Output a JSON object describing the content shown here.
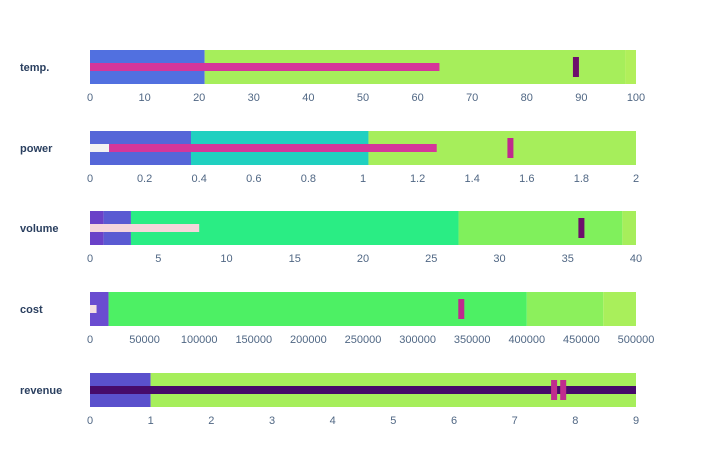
{
  "chart_data": {
    "type": "bullet",
    "bullets": [
      {
        "label": "temp.",
        "axis": {
          "min": 0,
          "max": 100,
          "ticks": [
            0,
            10,
            20,
            30,
            40,
            50,
            60,
            70,
            80,
            90,
            100
          ],
          "tick_labels": [
            "0",
            "10",
            "20",
            "30",
            "40",
            "50",
            "60",
            "70",
            "80",
            "90",
            "100"
          ]
        },
        "ranges": [
          {
            "from": 0,
            "to": 21,
            "color": "#5170e0"
          },
          {
            "from": 21,
            "to": 98,
            "color": "#a6ee5b"
          },
          {
            "from": 98,
            "to": 100,
            "color": "#b1ef5a"
          }
        ],
        "measures": [
          {
            "from": 0,
            "to": 64,
            "color": "#d5369a"
          }
        ],
        "targets": [
          {
            "value": 89,
            "color": "#6d0f6c"
          }
        ]
      },
      {
        "label": "power",
        "axis": {
          "min": 0,
          "max": 2,
          "ticks": [
            0,
            0.2,
            0.4,
            0.6,
            0.8,
            1,
            1.2,
            1.4,
            1.6,
            1.8,
            2
          ],
          "tick_labels": [
            "0",
            "0.2",
            "0.4",
            "0.6",
            "0.8",
            "1",
            "1.2",
            "1.4",
            "1.6",
            "1.8",
            "2"
          ]
        },
        "ranges": [
          {
            "from": 0,
            "to": 0.37,
            "color": "#5566d8"
          },
          {
            "from": 0.37,
            "to": 1.02,
            "color": "#20d0c0"
          },
          {
            "from": 1.02,
            "to": 2,
            "color": "#a6ee5b"
          }
        ],
        "measures": [
          {
            "from": 0,
            "to": 0.07,
            "color": "#f2f2f2"
          },
          {
            "from": 0.07,
            "to": 1.27,
            "color": "#d5369a"
          }
        ],
        "targets": [
          {
            "value": 1.54,
            "color": "#c02a8e"
          }
        ]
      },
      {
        "label": "volume",
        "axis": {
          "min": 0,
          "max": 40,
          "ticks": [
            0,
            5,
            10,
            15,
            20,
            25,
            30,
            35,
            40
          ],
          "tick_labels": [
            "0",
            "5",
            "10",
            "15",
            "20",
            "25",
            "30",
            "35",
            "40"
          ]
        },
        "ranges": [
          {
            "from": 0,
            "to": 1,
            "color": "#6a41c8"
          },
          {
            "from": 1,
            "to": 3,
            "color": "#5a5ad2"
          },
          {
            "from": 3,
            "to": 27,
            "color": "#2aed84"
          },
          {
            "from": 27,
            "to": 39,
            "color": "#80f05c"
          },
          {
            "from": 39,
            "to": 40,
            "color": "#a6ee5b"
          }
        ],
        "measures": [
          {
            "from": 0,
            "to": 8,
            "color": "#f5d6dc"
          }
        ],
        "targets": [
          {
            "value": 36,
            "color": "#6d0f6c"
          }
        ]
      },
      {
        "label": "cost",
        "axis": {
          "min": 0,
          "max": 500000,
          "ticks": [
            0,
            50000,
            100000,
            150000,
            200000,
            250000,
            300000,
            350000,
            400000,
            450000,
            500000
          ],
          "tick_labels": [
            "0",
            "50000",
            "100000",
            "150000",
            "200000",
            "250000",
            "300000",
            "350000",
            "400000",
            "450000",
            "500000"
          ]
        },
        "ranges": [
          {
            "from": 0,
            "to": 17000,
            "color": "#6a4cd0"
          },
          {
            "from": 17000,
            "to": 400000,
            "color": "#4df064"
          },
          {
            "from": 400000,
            "to": 470000,
            "color": "#8cf05c"
          },
          {
            "from": 470000,
            "to": 500000,
            "color": "#a9ef5b"
          }
        ],
        "measures": [
          {
            "from": 0,
            "to": 6000,
            "color": "#f5dfe2"
          }
        ],
        "targets": [
          {
            "value": 340000,
            "color": "#c02a8e"
          }
        ]
      },
      {
        "label": "revenue",
        "axis": {
          "min": 0,
          "max": 9,
          "ticks": [
            0,
            1,
            2,
            3,
            4,
            5,
            6,
            7,
            8,
            9
          ],
          "tick_labels": [
            "0",
            "1",
            "2",
            "3",
            "4",
            "5",
            "6",
            "7",
            "8",
            "9"
          ]
        },
        "ranges": [
          {
            "from": 0,
            "to": 1,
            "color": "#5a50cc"
          },
          {
            "from": 1,
            "to": 9,
            "color": "#a6ee5b"
          }
        ],
        "measures": [
          {
            "from": 0,
            "to": 9,
            "color": "#460a6a"
          }
        ],
        "targets": [
          {
            "value": 7.65,
            "color": "#c02a8e"
          },
          {
            "value": 7.8,
            "color": "#c02a8e"
          }
        ]
      }
    ]
  }
}
